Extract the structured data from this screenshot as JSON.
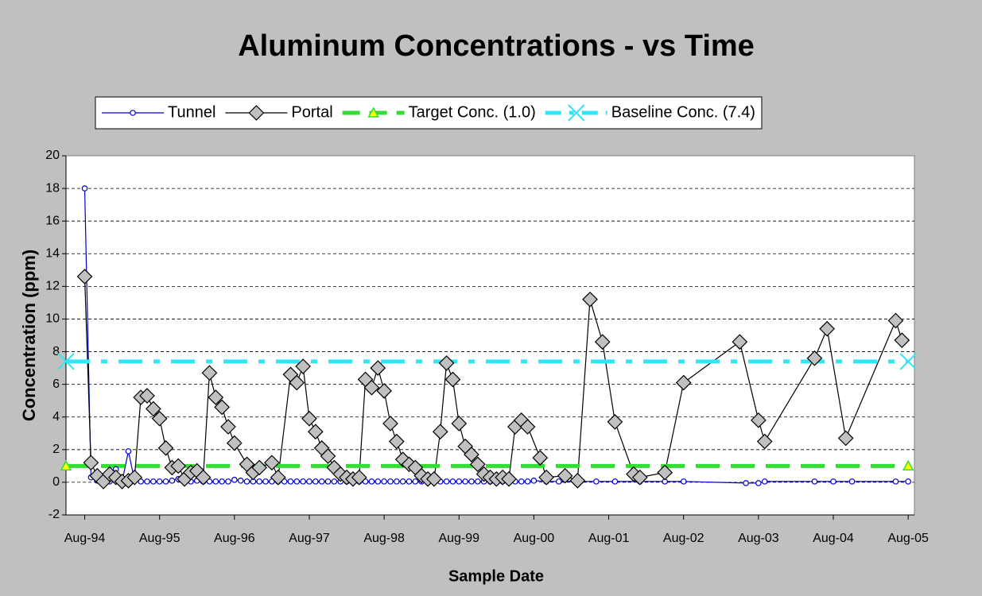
{
  "chart_data": {
    "type": "line",
    "title": "Aluminum Concentrations - vs Time",
    "x_label": "Sample Date",
    "y_label": "Concentration (ppm)",
    "xlim": [
      "1994-05",
      "2005-09"
    ],
    "xticks": [
      {
        "value": "1994-08",
        "label": "Aug-94"
      },
      {
        "value": "1995-08",
        "label": "Aug-95"
      },
      {
        "value": "1996-08",
        "label": "Aug-96"
      },
      {
        "value": "1997-08",
        "label": "Aug-97"
      },
      {
        "value": "1998-08",
        "label": "Aug-98"
      },
      {
        "value": "1999-08",
        "label": "Aug-99"
      },
      {
        "value": "2000-08",
        "label": "Aug-00"
      },
      {
        "value": "2001-08",
        "label": "Aug-01"
      },
      {
        "value": "2002-08",
        "label": "Aug-02"
      },
      {
        "value": "2003-08",
        "label": "Aug-03"
      },
      {
        "value": "2004-08",
        "label": "Aug-04"
      },
      {
        "value": "2005-08",
        "label": "Aug-05"
      }
    ],
    "ylim": [
      -2,
      20
    ],
    "yticks": [
      -2,
      0,
      2,
      4,
      6,
      8,
      10,
      12,
      14,
      16,
      18,
      20
    ],
    "grid": true,
    "legend": "top",
    "series": [
      {
        "name": "Tunnel",
        "color": "#0000cc",
        "marker": "circle",
        "dash": "none",
        "x": [
          "1994-08",
          "1994-09",
          "1994-10",
          "1994-11",
          "1994-12",
          "1995-01",
          "1995-02",
          "1995-03",
          "1995-04",
          "1995-05",
          "1995-06",
          "1995-07",
          "1995-08",
          "1995-09",
          "1995-10",
          "1995-11",
          "1995-12",
          "1996-01",
          "1996-02",
          "1996-03",
          "1996-04",
          "1996-05",
          "1996-06",
          "1996-07",
          "1996-08",
          "1996-09",
          "1996-10",
          "1996-11",
          "1996-12",
          "1997-01",
          "1997-02",
          "1997-03",
          "1997-04",
          "1997-05",
          "1997-06",
          "1997-07",
          "1997-08",
          "1997-09",
          "1997-10",
          "1997-11",
          "1997-12",
          "1998-01",
          "1998-02",
          "1998-03",
          "1998-04",
          "1998-05",
          "1998-06",
          "1998-07",
          "1998-08",
          "1998-09",
          "1998-10",
          "1998-11",
          "1998-12",
          "1999-01",
          "1999-02",
          "1999-03",
          "1999-04",
          "1999-05",
          "1999-06",
          "1999-07",
          "1999-08",
          "1999-09",
          "1999-10",
          "1999-11",
          "1999-12",
          "2000-01",
          "2000-02",
          "2000-03",
          "2000-04",
          "2000-05",
          "2000-06",
          "2000-07",
          "2000-08",
          "2000-10",
          "2000-12",
          "2001-03",
          "2001-06",
          "2001-09",
          "2002-01",
          "2002-05",
          "2002-08",
          "2003-06",
          "2003-08",
          "2003-09",
          "2004-05",
          "2004-08",
          "2004-11",
          "2005-06",
          "2005-08"
        ],
        "values": [
          18,
          0.3,
          0.1,
          0.05,
          0.05,
          0.8,
          0.05,
          1.9,
          0.1,
          0.05,
          0.05,
          0.05,
          0.05,
          0.05,
          0.1,
          0.2,
          0.05,
          0.05,
          0.1,
          0.05,
          0.05,
          0.05,
          0.05,
          0.05,
          0.15,
          0.1,
          0.05,
          0.05,
          0.05,
          0.05,
          0.05,
          0.05,
          0.05,
          0.05,
          0.05,
          0.05,
          0.05,
          0.05,
          0.05,
          0.05,
          0.05,
          0.05,
          0.05,
          0.05,
          0.05,
          0.05,
          0.05,
          0.05,
          0.05,
          0.05,
          0.05,
          0.05,
          0.05,
          0.05,
          0.05,
          0.05,
          0.05,
          0.05,
          0.05,
          0.05,
          0.05,
          0.05,
          0.05,
          0.05,
          0.05,
          0.05,
          0.05,
          0.05,
          0.05,
          0.05,
          0.05,
          0.05,
          0.1,
          0.05,
          0.05,
          0.05,
          0.05,
          0.05,
          0.05,
          0.05,
          0.05,
          -0.05,
          -0.05,
          0.05,
          0.05,
          0.05,
          0.05,
          0.05,
          0.05
        ]
      },
      {
        "name": "Portal",
        "color": "#000000",
        "marker": "diamond",
        "dash": "none",
        "x": [
          "1994-08",
          "1994-09",
          "1994-10",
          "1994-11",
          "1994-12",
          "1995-01",
          "1995-02",
          "1995-03",
          "1995-04",
          "1995-05",
          "1995-06",
          "1995-07",
          "1995-08",
          "1995-09",
          "1995-10",
          "1995-11",
          "1995-12",
          "1996-01",
          "1996-02",
          "1996-03",
          "1996-04",
          "1996-05",
          "1996-06",
          "1996-07",
          "1996-08",
          "1996-10",
          "1996-11",
          "1996-12",
          "1997-02",
          "1997-03",
          "1997-05",
          "1997-06",
          "1997-07",
          "1997-08",
          "1997-09",
          "1997-10",
          "1997-11",
          "1997-12",
          "1998-01",
          "1998-02",
          "1998-03",
          "1998-04",
          "1998-05",
          "1998-06",
          "1998-07",
          "1998-08",
          "1998-09",
          "1998-10",
          "1998-11",
          "1998-12",
          "1999-01",
          "1999-02",
          "1999-03",
          "1999-04",
          "1999-05",
          "1999-06",
          "1999-07",
          "1999-08",
          "1999-09",
          "1999-10",
          "1999-11",
          "1999-12",
          "2000-01",
          "2000-02",
          "2000-03",
          "2000-04",
          "2000-05",
          "2000-06",
          "2000-07",
          "2000-09",
          "2000-10",
          "2001-01",
          "2001-03",
          "2001-05",
          "2001-07",
          "2001-09",
          "2001-12",
          "2002-01",
          "2002-05",
          "2002-08",
          "2003-05",
          "2003-08",
          "2003-09",
          "2004-05",
          "2004-07",
          "2004-10",
          "2005-06",
          "2005-07"
        ],
        "values": [
          12.6,
          1.2,
          0.4,
          0.05,
          0.5,
          0.3,
          0.05,
          0.1,
          0.3,
          5.2,
          5.3,
          4.5,
          3.9,
          2.1,
          0.9,
          1.0,
          0.2,
          0.6,
          0.7,
          0.3,
          6.7,
          5.2,
          4.6,
          3.4,
          2.4,
          1.1,
          0.6,
          0.9,
          1.2,
          0.3,
          6.6,
          6.1,
          7.1,
          3.9,
          3.1,
          2.1,
          1.6,
          0.9,
          0.5,
          0.3,
          0.2,
          0.3,
          6.3,
          5.8,
          7.0,
          5.6,
          3.6,
          2.5,
          1.4,
          1.1,
          0.9,
          0.4,
          0.2,
          0.2,
          3.1,
          7.3,
          6.3,
          3.6,
          2.2,
          1.7,
          1.1,
          0.5,
          0.3,
          0.2,
          0.3,
          0.2,
          3.4,
          3.8,
          3.4,
          1.5,
          0.3,
          0.4,
          0.1,
          11.2,
          8.6,
          3.7,
          0.5,
          0.3,
          0.6,
          6.1,
          8.6,
          3.8,
          2.5,
          7.6,
          9.4,
          2.7,
          9.9,
          8.7
        ]
      },
      {
        "name": "Target Conc. (1.0)",
        "color": "#33dd33",
        "marker": "triangle",
        "dash": "long",
        "x": [
          "1994-05",
          "2005-08"
        ],
        "values": [
          1.0,
          1.0
        ]
      },
      {
        "name": "Baseline Conc. (7.4)",
        "color": "#33e6f5",
        "marker": "x",
        "dash": "dashdot",
        "x": [
          "1994-05",
          "2005-08"
        ],
        "values": [
          7.4,
          7.4
        ]
      }
    ]
  }
}
